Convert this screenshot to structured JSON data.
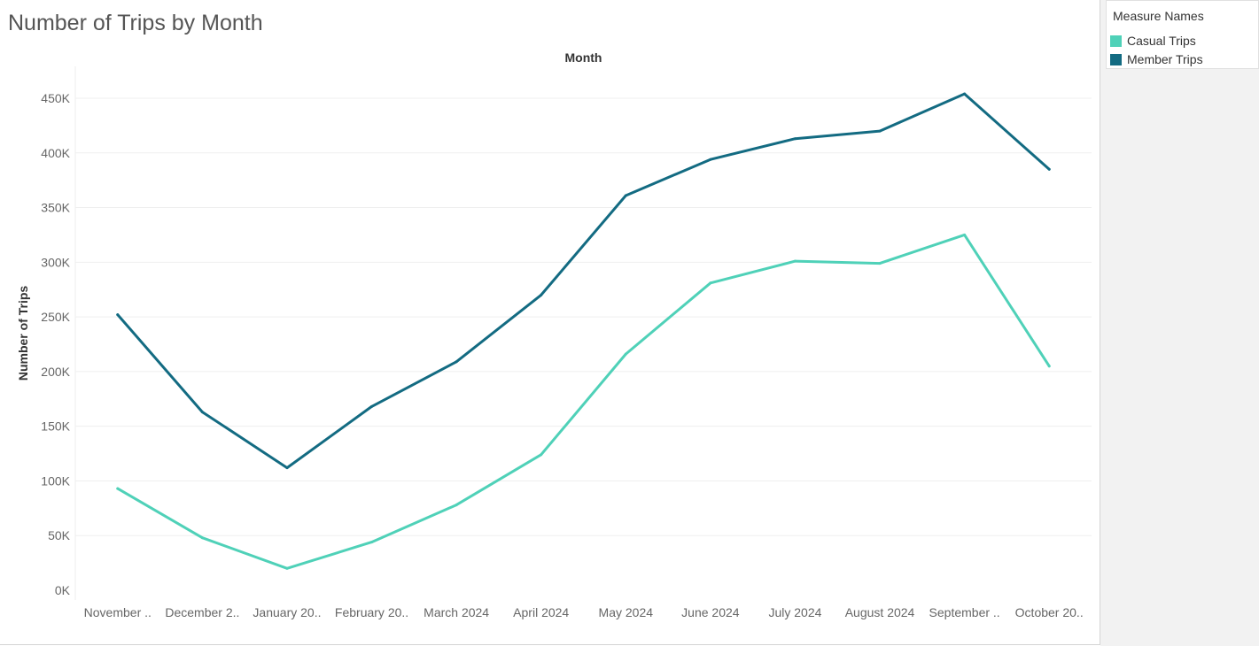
{
  "chart_data": {
    "type": "line",
    "title": "Number of Trips by Month",
    "header_label": "Month",
    "xlabel": "",
    "ylabel": "Number of Trips",
    "categories": [
      "November ..",
      "December 2..",
      "January 20..",
      "February 20..",
      "March 2024",
      "April 2024",
      "May 2024",
      "June 2024",
      "July 2024",
      "August 2024",
      "September ..",
      "October 20.."
    ],
    "ylim": [
      0,
      470000
    ],
    "yticks": [
      0,
      50000,
      100000,
      150000,
      200000,
      250000,
      300000,
      350000,
      400000,
      450000
    ],
    "ytick_labels": [
      "0K",
      "50K",
      "100K",
      "150K",
      "200K",
      "250K",
      "300K",
      "350K",
      "400K",
      "450K"
    ],
    "series": [
      {
        "name": "Casual Trips",
        "color": "#4fd1b8",
        "values": [
          93000,
          48000,
          20000,
          44000,
          78000,
          124000,
          216000,
          281000,
          301000,
          299000,
          325000,
          205000
        ]
      },
      {
        "name": "Member Trips",
        "color": "#136b82",
        "values": [
          252000,
          163000,
          112000,
          168000,
          209000,
          270000,
          361000,
          394000,
          413000,
          420000,
          454000,
          385000
        ]
      }
    ],
    "grid": true,
    "legend": {
      "title": "Measure Names",
      "position": "right"
    }
  }
}
